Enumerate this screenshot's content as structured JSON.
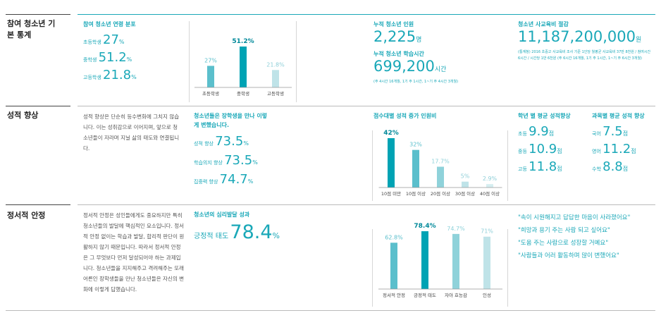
{
  "basic": {
    "label": "참여 청소년 기본 통계",
    "age": {
      "title": "참여 청소년 연령 분포",
      "rows": [
        {
          "name": "초등학생",
          "value": "27",
          "unit": "%"
        },
        {
          "name": "중학생",
          "value": "51.2",
          "unit": "%"
        },
        {
          "name": "고등학생",
          "value": "21.8",
          "unit": "%"
        }
      ],
      "chart": {
        "type": "bar",
        "categories": [
          "초등학생",
          "중학생",
          "고등학생"
        ],
        "values": [
          27,
          51.2,
          21.8
        ],
        "value_labels": [
          "27%",
          "51.2%",
          "21.8%"
        ],
        "colors": [
          "#5bbfcc",
          "#00a3b4",
          "#bfe3e8"
        ],
        "highlight": 1
      }
    },
    "people": {
      "title": "누적 청소년 인원",
      "value": "2,225",
      "unit": "명"
    },
    "hours": {
      "title": "누적 청소년 학습시간",
      "value": "699,200",
      "unit": "시간",
      "note": "(주 4시간 16개월, 1기 주 1시간, 1~기 주 4시간 3개월)"
    },
    "savings": {
      "title": "청소년 사교육비 절감",
      "value": "11,187,200,000",
      "unit": "원",
      "note": "(통계청) 2016 초중고 사교육비 조사 기준 1인당 월평균 사교육비 37만 8천원 / 참여시간 6시간 / 시간당 1만 6천원 (주 6시간 16개월, 1기 주 1시간, 1~기 주 6시간 3개월)"
    }
  },
  "grades": {
    "label": "성적 향상",
    "text": "성적 향상은 단순히 등수변화에 그치지 않습니다. 이는 성취감으로 이어지며, 앞으로 청소년들이 자라며 지닐 삶의 태도와 연결됩니다.",
    "change": {
      "title": "청소년들은 장학생을 만나 이렇게 변했습니다.",
      "rows": [
        {
          "name": "성적 향상",
          "value": "73.5",
          "unit": "%"
        },
        {
          "name": "학습의지 향상",
          "value": "73.5",
          "unit": "%"
        },
        {
          "name": "집중력 향상",
          "value": "74.7",
          "unit": "%"
        }
      ]
    },
    "score": {
      "title": "점수대별 성적 증가 인원비",
      "chart": {
        "type": "bar",
        "categories": [
          "10점 미만",
          "10점 이상",
          "20점 이상",
          "30점 이상",
          "40점 이상"
        ],
        "values": [
          42,
          32,
          17.7,
          5,
          2.9
        ],
        "value_labels": [
          "42%",
          "32%",
          "17.7%",
          "5%",
          "2.9%"
        ],
        "colors": [
          "#00a3b4",
          "#5bbfcc",
          "#8fd2da",
          "#bfe3e8",
          "#d5edf0"
        ],
        "highlight": 0
      }
    },
    "grade": {
      "title": "학년 별 평균 성적향상",
      "rows": [
        {
          "name": "초등",
          "value": "9.9",
          "unit": "점"
        },
        {
          "name": "중등",
          "value": "10.9",
          "unit": "점"
        },
        {
          "name": "고등",
          "value": "11.8",
          "unit": "점"
        }
      ]
    },
    "subject": {
      "title": "과목별 평균 성적 향상",
      "rows": [
        {
          "name": "국어",
          "value": "7.5",
          "unit": "점"
        },
        {
          "name": "영어",
          "value": "11.2",
          "unit": "점"
        },
        {
          "name": "수학",
          "value": "8.8",
          "unit": "점"
        }
      ]
    }
  },
  "emotion": {
    "label": "정서적 안정",
    "text": "정서적 안정은 성인들에게도 중요하지만 특히 청소년들의 발달에 핵심적인 요소입니다. 정서적 안정 없이는 학습과 발달, 합리적 판단이 원활하지 않기 때문입니다. 따라서 정서적 안정은 그 무엇보다 먼저 달성되어야 하는 과제입니다. 청소년들을 지지해주고 격려해주는 또래어른인 장학생들을 만난 청소년들은 자신의 변화에 이렇게 답했습니다.",
    "result": {
      "title": "청소년의 심리발달 성과",
      "name": "긍정적 태도",
      "value": "78.4",
      "unit": "%"
    },
    "chart": {
      "type": "bar",
      "categories": [
        "정서적 안정",
        "긍정적 태도",
        "자아 효능감",
        "인성"
      ],
      "values": [
        62.8,
        78.4,
        74.7,
        71
      ],
      "value_labels": [
        "62.8%",
        "78.4%",
        "74.7%",
        "71%"
      ],
      "colors": [
        "#5bbfcc",
        "#00a3b4",
        "#8fd2da",
        "#bfe3e8"
      ],
      "highlight": 1
    },
    "quotes": [
      "\"속이 시원해지고 답답한 마음이 사라졌어요\"",
      "\"희망과 용기 주는 사람 되고 싶어요\"",
      "\"도움 주는 사람으로 성장할 거예요\"",
      "\"사람들과 어러 활동하며 많이 변했어요\""
    ]
  }
}
